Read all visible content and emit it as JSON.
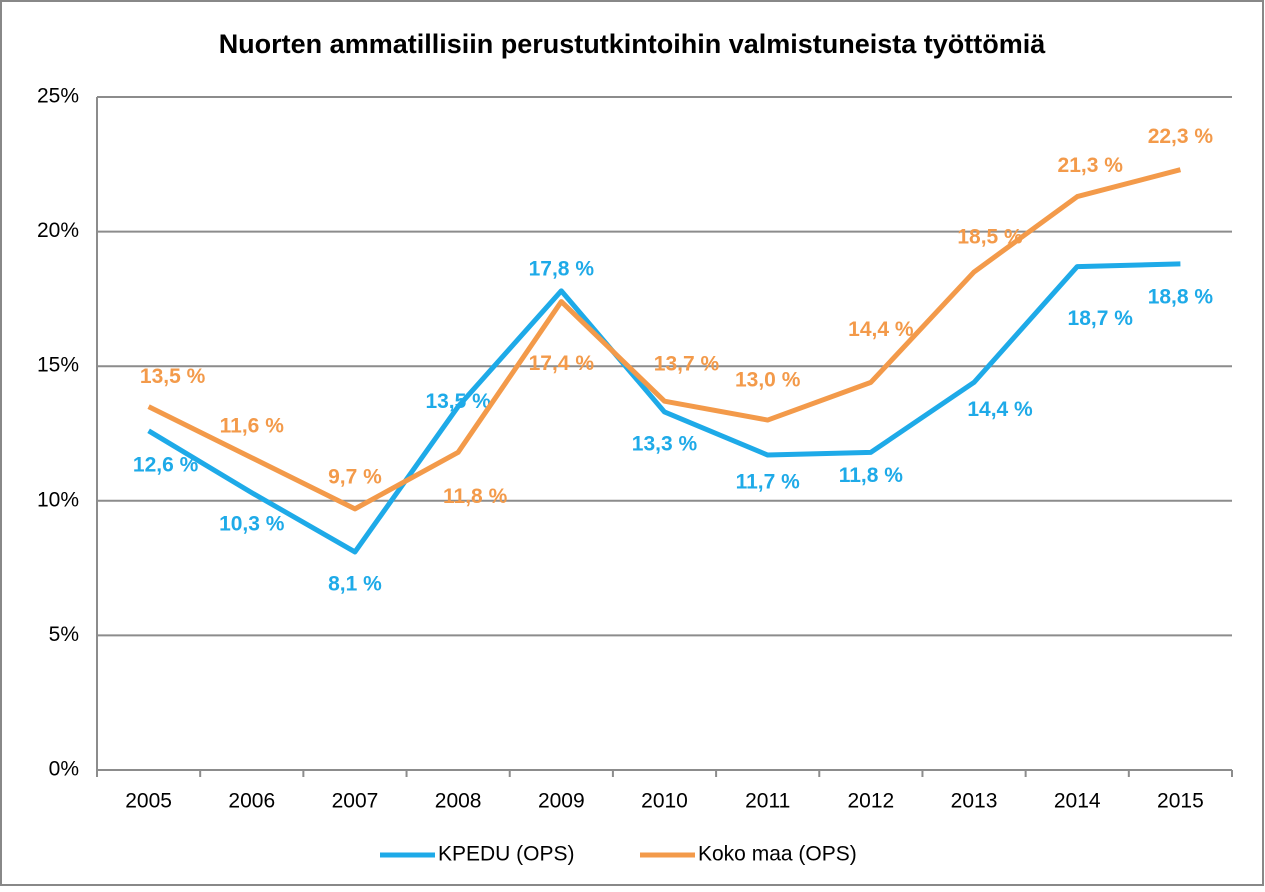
{
  "chart_data": {
    "type": "line",
    "title": "Nuorten ammatillisiin perustutkintoihin valmistuneista työttömiä",
    "categories": [
      "2005",
      "2006",
      "2007",
      "2008",
      "2009",
      "2010",
      "2011",
      "2012",
      "2013",
      "2014",
      "2015"
    ],
    "series": [
      {
        "name": "KPEDU (OPS)",
        "color": "#1eaae8",
        "values": [
          12.6,
          10.3,
          8.1,
          13.5,
          17.8,
          13.3,
          11.7,
          11.8,
          14.4,
          18.7,
          18.8
        ],
        "value_labels": [
          "12,6 %",
          "10,3 %",
          "8,1 %",
          "13,5 %",
          "17,8 %",
          "13,3 %",
          "11,7 %",
          "11,8 %",
          "14,4 %",
          "18,7 %",
          "18,8 %"
        ]
      },
      {
        "name": "Koko maa (OPS)",
        "color": "#f39a4a",
        "values": [
          13.5,
          11.6,
          9.7,
          11.8,
          17.4,
          13.7,
          13.0,
          14.4,
          18.5,
          21.3,
          22.3
        ],
        "value_labels": [
          "13,5 %",
          "11,6 %",
          "9,7 %",
          "11,8 %",
          "17,4 %",
          "13,7 %",
          "13,0 %",
          "14,4 %",
          "18,5 %",
          "21,3 %",
          "22,3 %"
        ]
      }
    ],
    "ylim": [
      0,
      25
    ],
    "yticks": [
      {
        "value": 0,
        "label": "0%"
      },
      {
        "value": 5,
        "label": "5%"
      },
      {
        "value": 10,
        "label": "10%"
      },
      {
        "value": 15,
        "label": "15%"
      },
      {
        "value": 20,
        "label": "20%"
      },
      {
        "value": 25,
        "label": "25%"
      }
    ],
    "grid": true,
    "legend": "bottom"
  }
}
